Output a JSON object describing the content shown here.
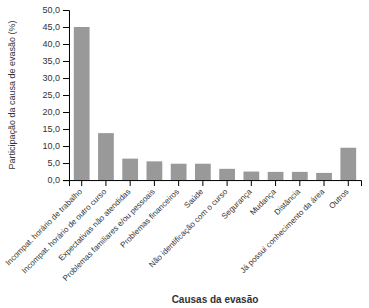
{
  "chart_data": {
    "type": "bar",
    "categories": [
      "Incompat. horário de trabalho",
      "Incompat. horário de outro curso",
      "Expectativas não atendidas",
      "Problemas familiares e/ou pessoais",
      "Problemas financeiros",
      "Saúde",
      "Não identificação com o curso",
      "Segurança",
      "Mudança",
      "Distância",
      "Já possui conhecimento da área",
      "Outros"
    ],
    "values": [
      45.0,
      13.8,
      6.3,
      5.5,
      4.8,
      4.8,
      3.3,
      2.5,
      2.4,
      2.4,
      2.1,
      9.5
    ],
    "color": "#999999",
    "xlabel": "Causas da evasão",
    "ylabel": "Participação da causa de evasão (%)",
    "ylim": [
      0,
      50.0
    ],
    "yticks": [
      {
        "value": 0.0,
        "label": "0,0"
      },
      {
        "value": 5.0,
        "label": "5,0"
      },
      {
        "value": 10.0,
        "label": "10,0"
      },
      {
        "value": 15.0,
        "label": "15,0"
      },
      {
        "value": 20.0,
        "label": "20,0"
      },
      {
        "value": 25.0,
        "label": "25,0"
      },
      {
        "value": 30.0,
        "label": "30,0"
      },
      {
        "value": 35.0,
        "label": "35,0"
      },
      {
        "value": 40.0,
        "label": "40,0"
      },
      {
        "value": 45.0,
        "label": "45,0"
      },
      {
        "value": 50.0,
        "label": "50,0"
      }
    ],
    "grid": false
  }
}
